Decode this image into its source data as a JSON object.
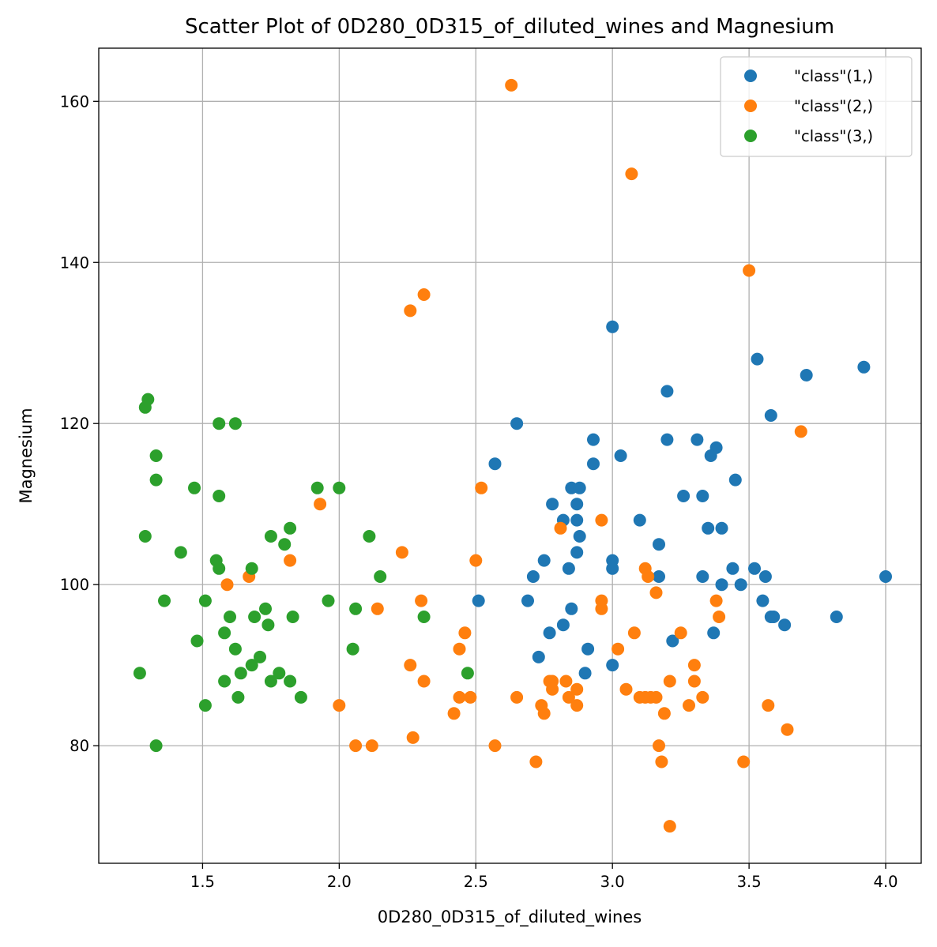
{
  "chart_data": {
    "type": "scatter",
    "title": "Scatter Plot of 0D280_0D315_of_diluted_wines and Magnesium",
    "xlabel": "0D280_0D315_of_diluted_wines",
    "ylabel": "Magnesium",
    "xlim": [
      1.12,
      4.13
    ],
    "ylim": [
      65.4,
      166.6
    ],
    "xticks": [
      1.5,
      2.0,
      2.5,
      3.0,
      3.5,
      4.0
    ],
    "yticks": [
      80,
      100,
      120,
      140,
      160
    ],
    "grid": true,
    "legend_position": "top-right",
    "series": [
      {
        "name": "\"class\"(1,)",
        "color": "#1f77b4",
        "points": [
          [
            3.0,
            132
          ],
          [
            3.53,
            128
          ],
          [
            3.71,
            126
          ],
          [
            3.92,
            127
          ],
          [
            3.2,
            124
          ],
          [
            3.58,
            121
          ],
          [
            2.65,
            120
          ],
          [
            2.57,
            115
          ],
          [
            2.93,
            118
          ],
          [
            3.2,
            118
          ],
          [
            3.31,
            118
          ],
          [
            3.38,
            117
          ],
          [
            3.03,
            116
          ],
          [
            3.36,
            116
          ],
          [
            2.93,
            115
          ],
          [
            3.45,
            113
          ],
          [
            2.85,
            112
          ],
          [
            2.88,
            112
          ],
          [
            3.26,
            111
          ],
          [
            3.33,
            111
          ],
          [
            2.78,
            110
          ],
          [
            2.87,
            110
          ],
          [
            2.82,
            108
          ],
          [
            2.87,
            108
          ],
          [
            3.1,
            108
          ],
          [
            3.35,
            107
          ],
          [
            3.4,
            107
          ],
          [
            2.88,
            106
          ],
          [
            3.17,
            105
          ],
          [
            2.87,
            104
          ],
          [
            2.75,
            103
          ],
          [
            3.0,
            103
          ],
          [
            2.84,
            102
          ],
          [
            3.0,
            102
          ],
          [
            3.44,
            102
          ],
          [
            3.52,
            102
          ],
          [
            2.71,
            101
          ],
          [
            3.17,
            101
          ],
          [
            3.33,
            101
          ],
          [
            3.56,
            101
          ],
          [
            4.0,
            101
          ],
          [
            3.4,
            100
          ],
          [
            3.47,
            100
          ],
          [
            2.51,
            98
          ],
          [
            2.69,
            98
          ],
          [
            3.55,
            98
          ],
          [
            2.85,
            97
          ],
          [
            3.58,
            96
          ],
          [
            3.59,
            96
          ],
          [
            3.82,
            96
          ],
          [
            2.82,
            95
          ],
          [
            3.63,
            95
          ],
          [
            2.77,
            94
          ],
          [
            3.37,
            94
          ],
          [
            3.22,
            93
          ],
          [
            2.91,
            92
          ],
          [
            2.73,
            91
          ],
          [
            3.0,
            90
          ],
          [
            2.9,
            89
          ]
        ]
      },
      {
        "name": "\"class\"(2,)",
        "color": "#ff7f0e",
        "points": [
          [
            2.63,
            162
          ],
          [
            3.07,
            151
          ],
          [
            3.5,
            139
          ],
          [
            2.31,
            136
          ],
          [
            2.26,
            134
          ],
          [
            3.69,
            119
          ],
          [
            2.52,
            112
          ],
          [
            1.93,
            110
          ],
          [
            2.96,
            108
          ],
          [
            2.81,
            107
          ],
          [
            2.23,
            104
          ],
          [
            1.82,
            103
          ],
          [
            2.5,
            103
          ],
          [
            3.12,
            102
          ],
          [
            1.67,
            101
          ],
          [
            3.13,
            101
          ],
          [
            1.59,
            100
          ],
          [
            3.16,
            99
          ],
          [
            2.3,
            98
          ],
          [
            2.96,
            98
          ],
          [
            3.38,
            98
          ],
          [
            2.14,
            97
          ],
          [
            2.96,
            97
          ],
          [
            3.39,
            96
          ],
          [
            2.46,
            94
          ],
          [
            3.08,
            94
          ],
          [
            3.25,
            94
          ],
          [
            2.44,
            92
          ],
          [
            3.02,
            92
          ],
          [
            2.26,
            90
          ],
          [
            3.3,
            90
          ],
          [
            2.31,
            88
          ],
          [
            2.77,
            88
          ],
          [
            2.78,
            88
          ],
          [
            2.83,
            88
          ],
          [
            3.21,
            88
          ],
          [
            3.3,
            88
          ],
          [
            2.78,
            87
          ],
          [
            2.87,
            87
          ],
          [
            3.05,
            87
          ],
          [
            2.44,
            86
          ],
          [
            2.48,
            86
          ],
          [
            2.65,
            86
          ],
          [
            2.84,
            86
          ],
          [
            3.1,
            86
          ],
          [
            3.12,
            86
          ],
          [
            3.14,
            86
          ],
          [
            3.16,
            86
          ],
          [
            3.33,
            86
          ],
          [
            2.0,
            85
          ],
          [
            2.74,
            85
          ],
          [
            2.87,
            85
          ],
          [
            3.28,
            85
          ],
          [
            3.57,
            85
          ],
          [
            2.42,
            84
          ],
          [
            2.75,
            84
          ],
          [
            3.19,
            84
          ],
          [
            3.64,
            82
          ],
          [
            2.27,
            81
          ],
          [
            2.06,
            80
          ],
          [
            2.12,
            80
          ],
          [
            2.57,
            80
          ],
          [
            3.17,
            80
          ],
          [
            2.72,
            78
          ],
          [
            3.18,
            78
          ],
          [
            3.48,
            78
          ],
          [
            3.21,
            70
          ]
        ]
      },
      {
        "name": "\"class\"(3,)",
        "color": "#2ca02c",
        "points": [
          [
            1.3,
            123
          ],
          [
            1.29,
            122
          ],
          [
            1.56,
            120
          ],
          [
            1.62,
            120
          ],
          [
            1.33,
            116
          ],
          [
            1.33,
            113
          ],
          [
            1.47,
            112
          ],
          [
            1.92,
            112
          ],
          [
            2.0,
            112
          ],
          [
            1.56,
            111
          ],
          [
            1.82,
            107
          ],
          [
            1.29,
            106
          ],
          [
            1.75,
            106
          ],
          [
            2.11,
            106
          ],
          [
            1.8,
            105
          ],
          [
            1.42,
            104
          ],
          [
            1.55,
            103
          ],
          [
            1.56,
            102
          ],
          [
            1.68,
            102
          ],
          [
            2.15,
            101
          ],
          [
            1.36,
            98
          ],
          [
            1.51,
            98
          ],
          [
            1.96,
            98
          ],
          [
            1.73,
            97
          ],
          [
            2.06,
            97
          ],
          [
            1.6,
            96
          ],
          [
            1.69,
            96
          ],
          [
            1.83,
            96
          ],
          [
            2.31,
            96
          ],
          [
            1.74,
            95
          ],
          [
            1.58,
            94
          ],
          [
            1.48,
            93
          ],
          [
            1.62,
            92
          ],
          [
            2.05,
            92
          ],
          [
            1.71,
            91
          ],
          [
            1.68,
            90
          ],
          [
            1.27,
            89
          ],
          [
            1.64,
            89
          ],
          [
            1.78,
            89
          ],
          [
            2.47,
            89
          ],
          [
            1.58,
            88
          ],
          [
            1.75,
            88
          ],
          [
            1.82,
            88
          ],
          [
            1.63,
            86
          ],
          [
            1.86,
            86
          ],
          [
            1.51,
            85
          ],
          [
            1.33,
            80
          ]
        ]
      }
    ]
  }
}
